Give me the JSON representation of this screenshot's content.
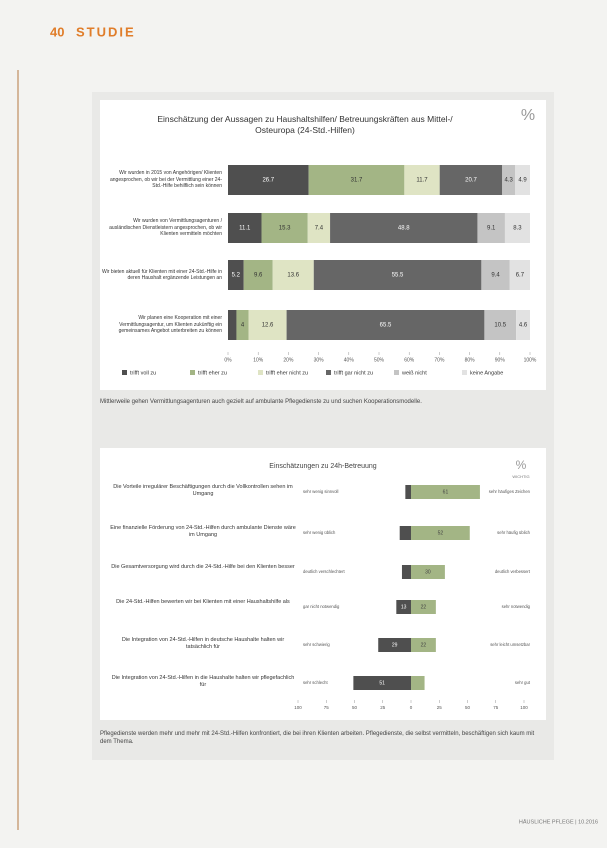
{
  "header": {
    "page": "40",
    "section": "STUDIE"
  },
  "footer": "HÄUSLICHE PFLEGE | 10.2016",
  "captions": [
    "Mittlerweile gehen Vermittlungsagenturen auch gezielt auf ambulante Pflegedienste zu und suchen Kooperationsmodelle.",
    "Pflegedienste werden mehr und mehr mit 24-Std.-Hilfen konfrontiert, die bei ihren Klienten arbeiten. Pflegedienste, die selbst vermitteln, beschäftigen sich kaum mit dem Thema."
  ],
  "chart_data": [
    {
      "type": "stacked-bar-h",
      "title": "Einschätzung der Aussagen zu Haushaltshilfen/ Betreuungskräften aus Mittel-/ Osteuropa (24-Std.-Hilfen)",
      "unit_icon": "%",
      "categories": [
        "Wir wurden in 2015 von Angehörigen/ Klienten angesprochen, ob wir bei der Vermittlung einer 24-Std.-Hilfe behilflich sein können",
        "Wir wurden von Vermittlungsagenturen / ausländischen Dienstleistern angesprochen, ob wir Klienten vermitteln möchten",
        "Wir bieten aktuell für Klienten mit einer 24-Std.-Hilfe in deren Haushalt ergänzende Leistungen an",
        "Wir planen eine Kooperation mit einer Vermittlungsagentur, um Klienten zukünftig ein gemeinsames Angebot unterbreiten zu können"
      ],
      "series": [
        {
          "name": "trifft voll zu",
          "color": "#4f4f4f",
          "values": [
            26.7,
            11.1,
            5.2,
            2.8
          ]
        },
        {
          "name": "trifft eher zu",
          "color": "#a3b585",
          "values": [
            31.7,
            15.3,
            9.6,
            4.0
          ]
        },
        {
          "name": "trifft eher nicht zu",
          "color": "#dfe4c4",
          "values": [
            11.7,
            7.4,
            13.6,
            12.6
          ]
        },
        {
          "name": "trifft gar nicht zu",
          "color": "#666666",
          "values": [
            20.7,
            48.8,
            55.5,
            65.5
          ]
        },
        {
          "name": "weiß nicht",
          "color": "#c4c4c4",
          "values": [
            4.3,
            9.1,
            9.4,
            10.5
          ]
        },
        {
          "name": "keine Angabe",
          "color": "#e2e2e2",
          "values": [
            4.9,
            8.3,
            6.7,
            4.6
          ]
        }
      ],
      "xlim": [
        0,
        100
      ],
      "xticks": [
        {
          "value": 0,
          "label": "0%"
        },
        {
          "value": 10,
          "label": "10%"
        },
        {
          "value": 20,
          "label": "20%"
        },
        {
          "value": 30,
          "label": "30%"
        },
        {
          "value": 40,
          "label": "40%"
        },
        {
          "value": 50,
          "label": "50%"
        },
        {
          "value": 60,
          "label": "60%"
        },
        {
          "value": 70,
          "label": "70%"
        },
        {
          "value": 80,
          "label": "80%"
        },
        {
          "value": 90,
          "label": "90%"
        },
        {
          "value": 100,
          "label": "100%"
        }
      ]
    },
    {
      "type": "diverging-bar",
      "title": "Einschätzungen zu 24h-Betreuung",
      "unit_icon": "%",
      "note": "WICHTIG",
      "categories": [
        "Die Vorteile irregulärer Beschäftigungen durch die Vollkontrollen sehen im Umgang",
        "Eine finanzielle Förderung von 24-Std.-Hilfen durch ambulante Dienste wäre im Umgang",
        "Die Gesamtversorgung wird durch die 24-Std.-Hilfe bei den Klienten besser",
        "Die 24-Std.-Hilfen bewerten wir bei Klienten mit einer Haushaltshilfe als",
        "Die Integration von 24-Std.-Hilfen in deutsche Haushalte halten wir tatsächlich für",
        "Die Integration von 24-Std.-Hilfen in die Haushalte halten wir pflegefachlich für"
      ],
      "low_labels": [
        "sehr wenig sinnvoll",
        "sehr wenig üblich",
        "deutlich verschlechtert",
        "gar nicht notwendig",
        "sehr schwierig",
        "sehr schlecht"
      ],
      "high_labels": [
        "sehr häufiges Zeichen",
        "sehr häufig üblich",
        "deutlich verbessert",
        "sehr notwendig",
        "sehr leicht umsetzbar",
        "sehr gut"
      ],
      "series": [
        {
          "color": "#4f4f4f",
          "values": [
            -5,
            -10,
            -8,
            -13,
            -29,
            -51
          ],
          "value_labels": [
            "5",
            "10",
            "8",
            "13",
            "29",
            "51"
          ]
        },
        {
          "color": "#a3b585",
          "values": [
            61,
            52,
            30,
            22,
            22,
            12
          ]
        }
      ],
      "xlim": [
        -100,
        100
      ],
      "xticks": [
        {
          "value": -100,
          "label": "100"
        },
        {
          "value": -75,
          "label": "75"
        },
        {
          "value": -50,
          "label": "50"
        },
        {
          "value": -25,
          "label": "25"
        },
        0,
        25,
        50,
        75,
        100
      ]
    }
  ]
}
